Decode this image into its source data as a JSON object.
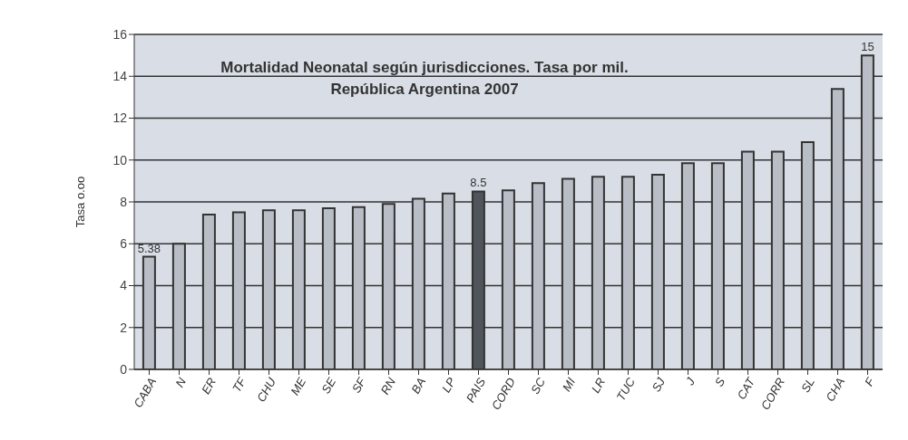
{
  "chart_data": {
    "type": "bar",
    "title": "Mortalidad Neonatal según jurisdicciones. Tasa por mil.\nRepública Argentina 2007",
    "ylabel": "Tasa o.oo",
    "categories": [
      "CABA",
      "N",
      "ER",
      "TF",
      "CHU",
      "ME",
      "SE",
      "SF",
      "RN",
      "BA",
      "LP",
      "PAIS",
      "CORD",
      "SC",
      "MI",
      "LR",
      "TUC",
      "SJ",
      "J",
      "S",
      "CAT",
      "CORR",
      "SL",
      "CHA",
      "F"
    ],
    "values": [
      5.38,
      6.0,
      7.4,
      7.5,
      7.6,
      7.6,
      7.7,
      7.75,
      7.9,
      8.15,
      8.4,
      8.5,
      8.55,
      8.9,
      9.1,
      9.2,
      9.2,
      9.3,
      9.85,
      9.85,
      10.4,
      10.4,
      10.85,
      13.4,
      15
    ],
    "value_labels": [
      "5.38",
      null,
      null,
      null,
      null,
      null,
      null,
      null,
      null,
      null,
      null,
      "8.5",
      null,
      null,
      null,
      null,
      null,
      null,
      null,
      null,
      null,
      null,
      null,
      null,
      "15"
    ],
    "colors": [
      "#b9bec6",
      "#b9bec6",
      "#b9bec6",
      "#b9bec6",
      "#b9bec6",
      "#b9bec6",
      "#b9bec6",
      "#b9bec6",
      "#b9bec6",
      "#b9bec6",
      "#b9bec6",
      "#50555c",
      "#b9bec6",
      "#b9bec6",
      "#b9bec6",
      "#b9bec6",
      "#b9bec6",
      "#b9bec6",
      "#b9bec6",
      "#b9bec6",
      "#b9bec6",
      "#b9bec6",
      "#b9bec6",
      "#b9bec6",
      "#b9bec6"
    ],
    "ylim": [
      0,
      16
    ],
    "yticks": [
      0,
      2,
      4,
      6,
      8,
      10,
      12,
      14,
      16
    ],
    "grid": "y"
  }
}
